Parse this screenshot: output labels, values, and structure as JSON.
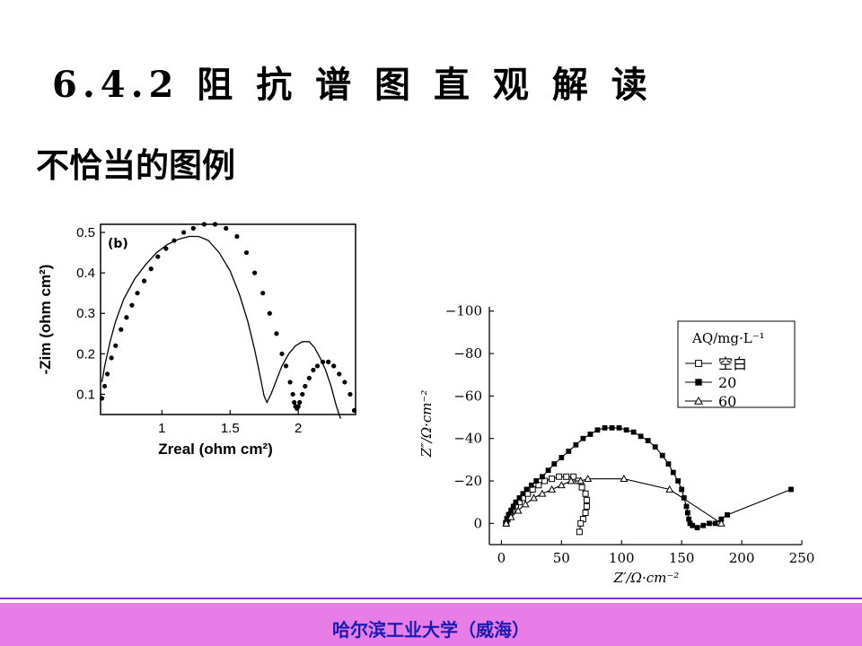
{
  "slide": {
    "title": "6.4.2 阻 抗 谱 图 直 观 解 读",
    "subtitle": "不恰当的图例",
    "footer": "哈尔滨工业大学（威海）",
    "colors": {
      "footer_bar": "#e87de8",
      "footer_line": "#8a2be2",
      "footer_text": "#1b1bb4"
    }
  },
  "chart_data": [
    {
      "type": "scatter",
      "title": "(b)",
      "xlabel": "Zreal (ohm cm²)",
      "ylabel": "-Zim (ohm cm²)",
      "xlim": [
        0.55,
        2.42
      ],
      "ylim": [
        0.05,
        0.52
      ],
      "xticks": [
        "1",
        "1.5",
        "2"
      ],
      "xtick_values": [
        1,
        1.5,
        2
      ],
      "yticks": [
        "0.5",
        "0.4",
        "0.3",
        "0.2",
        "0.1"
      ],
      "ytick_values": [
        0.5,
        0.4,
        0.3,
        0.2,
        0.1
      ],
      "grid": false,
      "legend": "none",
      "series": [
        {
          "style": "line",
          "x": [
            0.56,
            0.58,
            0.62,
            0.66,
            0.72,
            0.8,
            0.88,
            0.96,
            1.04,
            1.12,
            1.2,
            1.27,
            1.34,
            1.42,
            1.5,
            1.57,
            1.63,
            1.68,
            1.72,
            1.75,
            1.77,
            1.8,
            1.84,
            1.88,
            1.93,
            1.98,
            2.03,
            2.08,
            2.12,
            2.16,
            2.2,
            2.24,
            2.28,
            2.31
          ],
          "y": [
            0.13,
            0.17,
            0.23,
            0.28,
            0.335,
            0.385,
            0.42,
            0.45,
            0.47,
            0.483,
            0.49,
            0.49,
            0.48,
            0.45,
            0.405,
            0.345,
            0.28,
            0.21,
            0.145,
            0.095,
            0.08,
            0.1,
            0.135,
            0.17,
            0.2,
            0.22,
            0.23,
            0.23,
            0.215,
            0.19,
            0.16,
            0.12,
            0.07,
            0.04
          ]
        },
        {
          "style": "dots",
          "x": [
            0.56,
            0.58,
            0.6,
            0.63,
            0.66,
            0.7,
            0.74,
            0.78,
            0.82,
            0.87,
            0.92,
            0.97,
            1.03,
            1.09,
            1.16,
            1.23,
            1.31,
            1.39,
            1.47,
            1.55,
            1.62,
            1.68,
            1.74,
            1.79,
            1.84,
            1.88,
            1.91,
            1.94,
            1.96,
            1.97,
            1.98,
            1.99,
            2.0,
            2.01,
            2.03,
            2.05,
            2.08,
            2.11,
            2.14,
            2.18,
            2.22,
            2.26,
            2.3,
            2.34,
            2.38,
            2.41
          ],
          "y": [
            0.09,
            0.12,
            0.15,
            0.19,
            0.22,
            0.26,
            0.29,
            0.32,
            0.35,
            0.38,
            0.41,
            0.44,
            0.46,
            0.48,
            0.5,
            0.51,
            0.52,
            0.52,
            0.51,
            0.49,
            0.45,
            0.4,
            0.35,
            0.3,
            0.25,
            0.2,
            0.17,
            0.13,
            0.1,
            0.08,
            0.07,
            0.065,
            0.07,
            0.08,
            0.1,
            0.12,
            0.14,
            0.16,
            0.17,
            0.18,
            0.18,
            0.17,
            0.15,
            0.13,
            0.1,
            0.06
          ]
        }
      ]
    },
    {
      "type": "scatter",
      "title": "",
      "xlabel": "Z′/Ω·cm⁻²",
      "ylabel": "Z″/Ω·cm⁻²",
      "xlim": [
        -10,
        250
      ],
      "ylim": [
        -102,
        10
      ],
      "xticks": [
        "0",
        "50",
        "100",
        "150",
        "200",
        "250"
      ],
      "xtick_values": [
        0,
        50,
        100,
        150,
        200,
        250
      ],
      "yticks": [
        "−100",
        "−80",
        "−60",
        "−40",
        "−20",
        "0"
      ],
      "ytick_values": [
        -100,
        -80,
        -60,
        -40,
        -20,
        0
      ],
      "grid": false,
      "legend": "top-right",
      "legend_title": "AQ/mg·L⁻¹",
      "series": [
        {
          "name": "空白",
          "marker": "open-square",
          "x": [
            4,
            5,
            7,
            9,
            12,
            15,
            18,
            22,
            26,
            31,
            36,
            42,
            48,
            54,
            60,
            64,
            67,
            70,
            71,
            71,
            70,
            68,
            66,
            65
          ],
          "y": [
            0,
            -2,
            -4,
            -6,
            -8,
            -10,
            -12,
            -14,
            -16,
            -18,
            -20,
            -21,
            -22,
            -22,
            -22,
            -20,
            -17,
            -14,
            -11,
            -8,
            -5,
            -2,
            0,
            4
          ]
        },
        {
          "name": "20",
          "marker": "filled-square",
          "x": [
            4,
            5,
            6,
            8,
            10,
            12,
            15,
            18,
            21,
            25,
            29,
            34,
            39,
            44,
            50,
            56,
            62,
            68,
            74,
            80,
            86,
            92,
            98,
            104,
            110,
            116,
            122,
            128,
            134,
            139,
            143,
            147,
            150,
            152,
            154,
            155,
            156,
            157,
            159,
            163,
            168,
            173,
            178,
            183,
            188,
            241
          ],
          "y": [
            0,
            -2,
            -4,
            -6,
            -8,
            -10,
            -12,
            -14,
            -16,
            -18,
            -20,
            -22,
            -25,
            -28,
            -31,
            -34,
            -37,
            -40,
            -42,
            -44,
            -45,
            -45,
            -45,
            -44,
            -43,
            -41,
            -39,
            -36,
            -32,
            -28,
            -24,
            -20,
            -16,
            -12,
            -8,
            -5,
            -2,
            0,
            1,
            2,
            1,
            0,
            0,
            -2,
            -4,
            -16
          ]
        },
        {
          "name": "60",
          "marker": "open-triangle",
          "x": [
            4,
            8,
            14,
            20,
            27,
            34,
            42,
            50,
            58,
            66,
            72,
            102,
            140,
            183
          ],
          "y": [
            0,
            -3,
            -6,
            -9,
            -12,
            -14,
            -16,
            -18,
            -20,
            -20,
            -21,
            -21,
            -16,
            0
          ]
        }
      ]
    }
  ]
}
